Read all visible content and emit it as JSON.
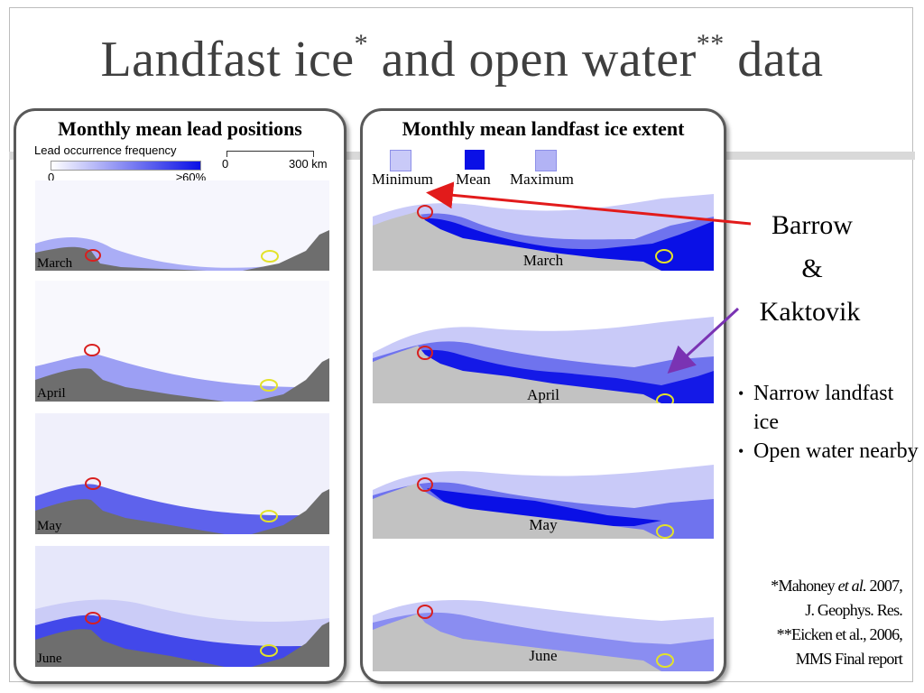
{
  "title": {
    "part1": "Landfast ice",
    "sup1": "*",
    "part2": " and open water",
    "sup2": "**",
    "part3": " data"
  },
  "left_panel": {
    "title": "Monthly mean lead positions",
    "legend": {
      "label": "Lead occurrence frequency",
      "min": "0",
      "max": "≥60%",
      "scale_start": "0",
      "scale_end": "300 km"
    },
    "maps": [
      {
        "month": "March"
      },
      {
        "month": "April"
      },
      {
        "month": "May"
      },
      {
        "month": "June"
      }
    ]
  },
  "right_panel": {
    "title": "Monthly mean landfast ice extent",
    "legend": {
      "minimum": "Minimum",
      "mean": "Mean",
      "maximum": "Maximum"
    },
    "maps": [
      {
        "month": "March"
      },
      {
        "month": "April"
      },
      {
        "month": "May"
      },
      {
        "month": "June"
      }
    ]
  },
  "places": {
    "line1": "Barrow",
    "line2": "&",
    "line3": "Kaktovik"
  },
  "bullets": [
    "Narrow landfast ice",
    "Open water nearby"
  ],
  "references": {
    "ref1_a": "*Mahoney ",
    "ref1_b": "et al.",
    "ref1_c": " 2007,",
    "ref1_d": "J. Geophys. Res.",
    "ref2_a": "**Eicken et al., 2006,",
    "ref2_b": "MMS Final report"
  },
  "colors": {
    "minimum": "#c9caf8",
    "mean": "#0a10e6",
    "maximum": "#b2b3f5",
    "mid_fill": "#6f73ee",
    "land_left": "#6e6e6e",
    "land_right": "#c2c2c2",
    "barrow_marker": "#d81f1f",
    "kaktovik_marker": "#e3e22a",
    "arrow_red": "#e21b1b",
    "arrow_purple": "#7a33b3"
  }
}
